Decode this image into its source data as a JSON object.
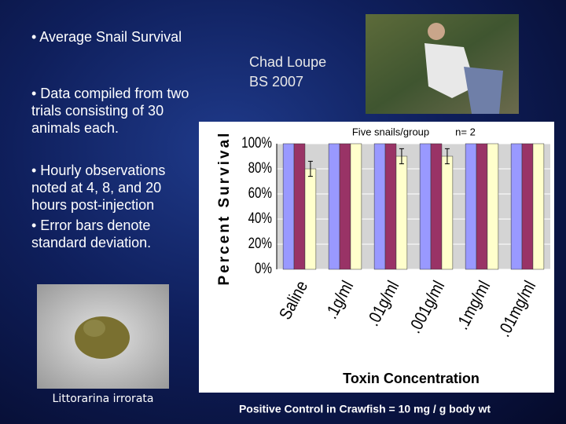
{
  "slide": {
    "bullets": [
      "• Average Snail Survival",
      "• Data compiled from two trials consisting of 30 animals each.",
      "• Hourly observations noted at 4, 8, and 20 hours post-injection",
      "• Error bars denote standard deviation."
    ],
    "person": [
      "Chad Loupe",
      "BS 2007"
    ],
    "caption": "Littorarina irrorata",
    "footer": "Positive Control in Crawfish = 10 mg / g body wt"
  },
  "chart_data": {
    "type": "bar",
    "annotations": [
      "Five snails/group",
      "n= 2"
    ],
    "ylabel": "Percent Survival",
    "xlabel": "Toxin Concentration",
    "categories": [
      "Saline",
      ".1g/ml",
      ".01g/ml",
      ".001g/ml",
      ".1mg/ml",
      ".01mg/ml"
    ],
    "series": [
      {
        "color": "#9999ff",
        "values": [
          100,
          100,
          100,
          100,
          100,
          100
        ]
      },
      {
        "color": "#993366",
        "values": [
          100,
          100,
          100,
          100,
          100,
          100
        ]
      },
      {
        "color": "#ffffcc",
        "values": [
          80,
          100,
          90,
          90,
          100,
          100
        ],
        "errors": [
          6,
          null,
          6,
          6,
          null,
          null
        ]
      }
    ],
    "ylim": [
      0,
      100
    ],
    "yticks": [
      {
        "value": 0,
        "label": "0%"
      },
      {
        "value": 20,
        "label": "20%"
      },
      {
        "value": 40,
        "label": "40%"
      },
      {
        "value": 60,
        "label": "60%"
      },
      {
        "value": 80,
        "label": "80%"
      },
      {
        "value": 100,
        "label": "100%"
      }
    ],
    "grid": true
  }
}
